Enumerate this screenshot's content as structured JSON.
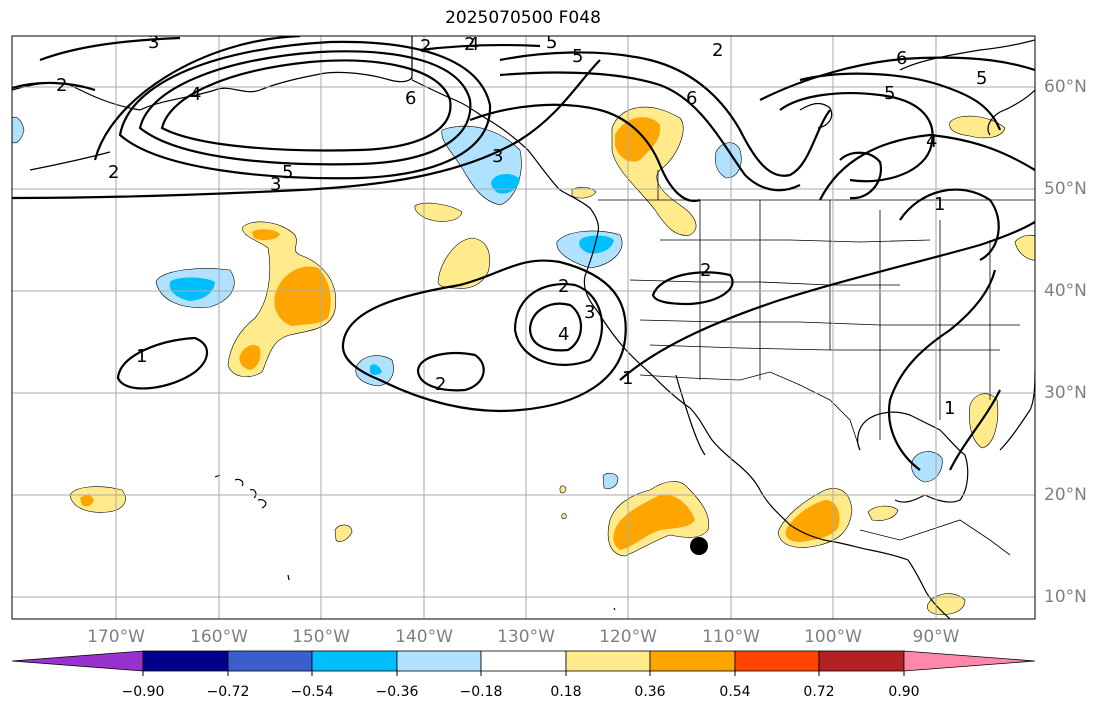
{
  "title": "2025070500 F048",
  "lat_labels": [
    "60°N",
    "50°N",
    "40°N",
    "30°N",
    "20°N",
    "10°N"
  ],
  "lon_labels": [
    "170°W",
    "160°W",
    "150°W",
    "140°W",
    "130°W",
    "120°W",
    "110°W",
    "100°W",
    "90°W"
  ],
  "contour_labels": {
    "c2a": "2",
    "c3a": "3",
    "c4a": "4",
    "c3b": "3",
    "c5a": "5",
    "c2b": "2",
    "c6a": "6",
    "c2c": "2",
    "c5b": "5",
    "c6b": "6",
    "c5c": "5",
    "c6c": "6",
    "c5d": "5",
    "c4b": "4",
    "c2d": "2",
    "c4c": "4",
    "c1a": "1",
    "c2e": "2",
    "c5e": "5",
    "c3c": "3",
    "c2f": "2",
    "c2g": "2",
    "c4d": "4",
    "c3d": "3",
    "c1b": "1",
    "c2h": "2",
    "c1c": "1",
    "c1d": "1"
  },
  "colorbar": {
    "ticks": [
      "−0.90",
      "−0.72",
      "−0.54",
      "−0.36",
      "−0.18",
      "0.18",
      "0.36",
      "0.54",
      "0.72",
      "0.90"
    ],
    "colors": [
      "#9932cc",
      "#00008b",
      "#3a5fcd",
      "#00bfff",
      "#b0e2ff",
      "#ffffff",
      "#ffeb8c",
      "#ffa500",
      "#ff4500",
      "#b22222",
      "#ff88aa"
    ]
  },
  "fill_colors": {
    "light_blue": "#b0e2ff",
    "blue": "#00bfff",
    "light_yellow": "#ffeb8c",
    "orange": "#ffa500"
  }
}
